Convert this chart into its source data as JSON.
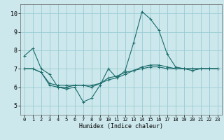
{
  "xlabel": "Humidex (Indice chaleur)",
  "background_color": "#cce8ec",
  "grid_color": "#99ccd4",
  "line_color": "#1a6b6b",
  "xlim": [
    -0.5,
    23.5
  ],
  "ylim": [
    4.5,
    10.5
  ],
  "yticks": [
    5,
    6,
    7,
    8,
    9,
    10
  ],
  "xticks": [
    0,
    1,
    2,
    3,
    4,
    5,
    6,
    7,
    8,
    9,
    10,
    11,
    12,
    13,
    14,
    15,
    16,
    17,
    18,
    19,
    20,
    21,
    22,
    23
  ],
  "series1_x": [
    0,
    1,
    2,
    3,
    4,
    5,
    6,
    7,
    8,
    9,
    10,
    11,
    12,
    13,
    14,
    15,
    16,
    17,
    18,
    19,
    20,
    21,
    22,
    23
  ],
  "series1_y": [
    7.7,
    8.1,
    7.0,
    6.7,
    6.0,
    5.9,
    6.0,
    5.2,
    5.4,
    6.1,
    7.0,
    6.5,
    6.9,
    8.4,
    10.1,
    9.7,
    9.1,
    7.8,
    7.1,
    7.0,
    6.9,
    7.0,
    7.0,
    7.0
  ],
  "series2_x": [
    0,
    1,
    2,
    3,
    4,
    5,
    6,
    7,
    8,
    9,
    10,
    11,
    12,
    13,
    14,
    15,
    16,
    17,
    18,
    19,
    20,
    21,
    22,
    23
  ],
  "series2_y": [
    7.0,
    7.0,
    6.8,
    6.2,
    6.1,
    6.1,
    6.1,
    6.1,
    6.1,
    6.2,
    6.4,
    6.5,
    6.7,
    6.9,
    7.1,
    7.2,
    7.2,
    7.1,
    7.0,
    7.0,
    7.0,
    7.0,
    7.0,
    7.0
  ],
  "series3_x": [
    0,
    1,
    2,
    3,
    4,
    5,
    6,
    7,
    8,
    9,
    10,
    11,
    12,
    13,
    14,
    15,
    16,
    17,
    18,
    19,
    20,
    21,
    22,
    23
  ],
  "series3_y": [
    7.0,
    7.0,
    6.8,
    6.1,
    6.0,
    6.0,
    6.1,
    6.1,
    6.0,
    6.2,
    6.5,
    6.6,
    6.8,
    6.9,
    7.0,
    7.1,
    7.1,
    7.0,
    7.0,
    7.0,
    7.0,
    7.0,
    7.0,
    7.0
  ]
}
